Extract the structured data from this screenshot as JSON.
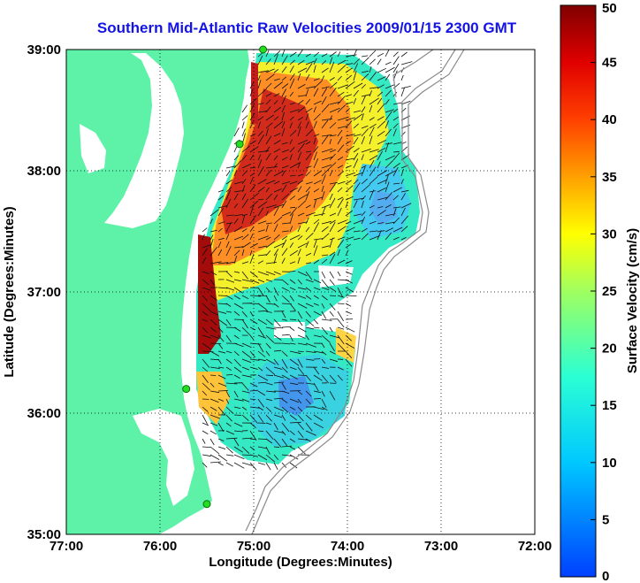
{
  "title": "Southern Mid-Atlantic Raw Velocities 2009/01/15 2300 GMT",
  "map": {
    "xlabel": "Longitude (Degrees:Minutes)",
    "ylabel": "Latitude (Degrees:Minutes)",
    "x_ticks": [
      "77:00",
      "76:00",
      "75:00",
      "74:00",
      "73:00",
      "72:00"
    ],
    "y_ticks": [
      "39:00",
      "38:00",
      "37:00",
      "36:00",
      "35:00"
    ],
    "lon_range": [
      -77,
      -72
    ],
    "lat_range": [
      35,
      39
    ],
    "grid": "dotted",
    "colors": {
      "land": "#5ef2a9",
      "water": "#ffffff",
      "stations": "#22dd22",
      "title": "#1414e6"
    }
  },
  "colorbar": {
    "label": "Surface Velocity (cm/s)",
    "ticks": [
      "0",
      "5",
      "10",
      "15",
      "20",
      "25",
      "30",
      "35",
      "40",
      "45",
      "50"
    ],
    "range": [
      0,
      50
    ],
    "colormap": "jet"
  },
  "stations": [
    {
      "lon": -74.9,
      "lat": 39.0
    },
    {
      "lon": -75.15,
      "lat": 38.22
    },
    {
      "lon": -75.72,
      "lat": 36.2
    },
    {
      "lon": -75.5,
      "lat": 35.25
    }
  ]
}
